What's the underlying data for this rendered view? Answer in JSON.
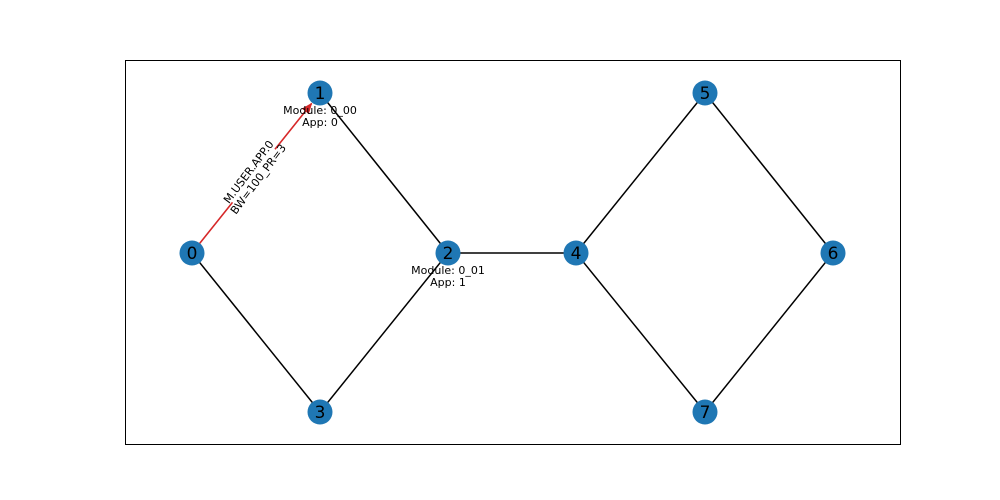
{
  "colors": {
    "node": "#1f77b4",
    "edge": "#000000",
    "message_edge": "#d62728",
    "frame": "#000000",
    "background": "#ffffff"
  },
  "nodes": [
    {
      "id": "0"
    },
    {
      "id": "1"
    },
    {
      "id": "2"
    },
    {
      "id": "3"
    },
    {
      "id": "4"
    },
    {
      "id": "5"
    },
    {
      "id": "6"
    },
    {
      "id": "7"
    }
  ],
  "edges": [
    {
      "from": "0",
      "to": "1",
      "type": "message"
    },
    {
      "from": "0",
      "to": "3",
      "type": "link"
    },
    {
      "from": "1",
      "to": "2",
      "type": "link"
    },
    {
      "from": "3",
      "to": "2",
      "type": "link"
    },
    {
      "from": "2",
      "to": "4",
      "type": "link"
    },
    {
      "from": "4",
      "to": "5",
      "type": "link"
    },
    {
      "from": "4",
      "to": "7",
      "type": "link"
    },
    {
      "from": "5",
      "to": "6",
      "type": "link"
    },
    {
      "from": "7",
      "to": "6",
      "type": "link"
    }
  ],
  "module_labels": [
    {
      "node": "1",
      "module": "Module: 0_00",
      "app": "App: 0"
    },
    {
      "node": "2",
      "module": "Module: 0_01",
      "app": "App: 1"
    }
  ],
  "edge_label": {
    "line1": "M.USER.APP.0",
    "line2": "BW=100_PR=3"
  }
}
